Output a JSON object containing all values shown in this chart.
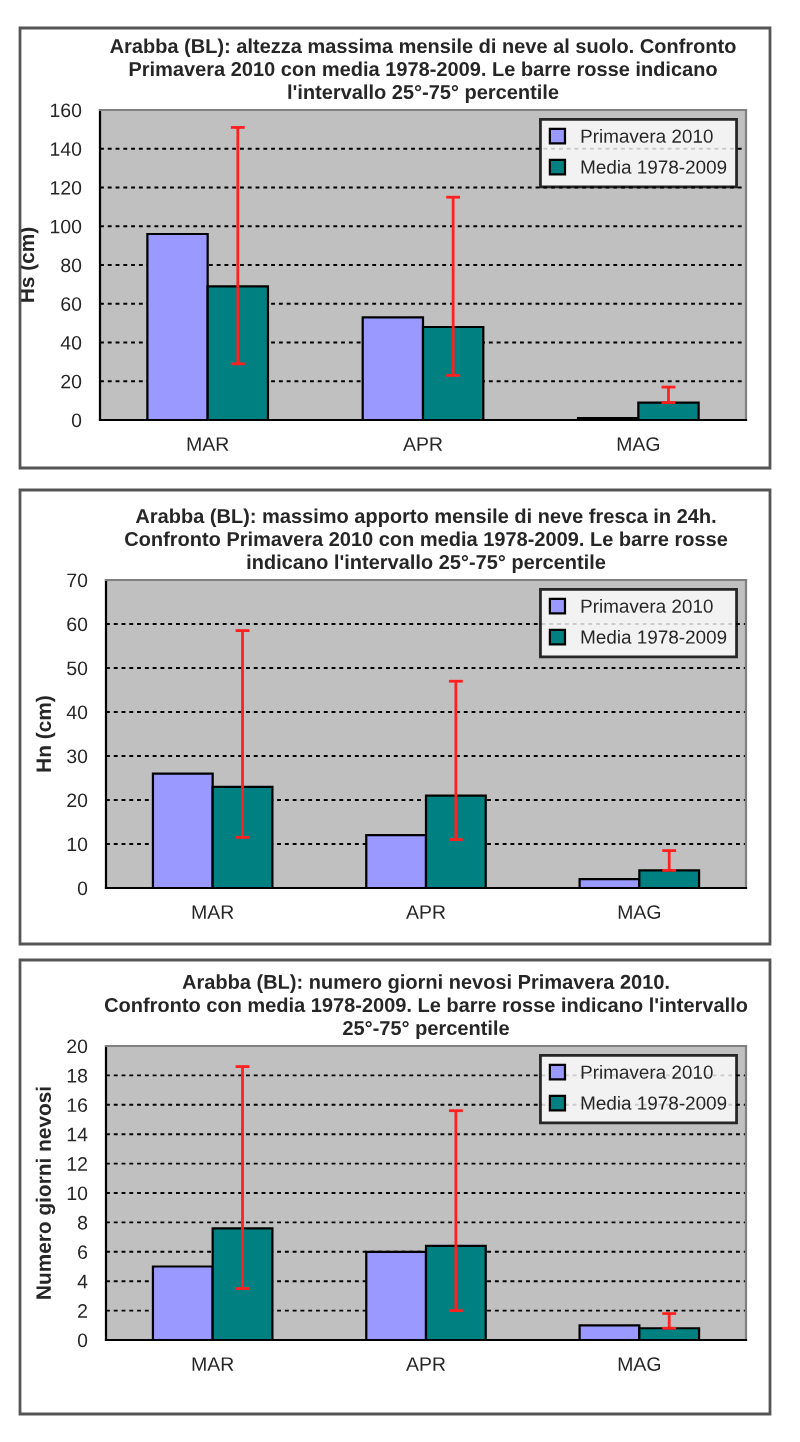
{
  "chart_data": [
    {
      "type": "bar",
      "title": "Arabba (BL): altezza massima mensile di neve al suolo. Confronto\nPrimavera 2010 con media 1978-2009. Le barre rosse indicano\nl'intervallo 25°-75° percentile",
      "ylabel": "Hs (cm)",
      "categories": [
        "MAR",
        "APR",
        "MAG"
      ],
      "series": [
        {
          "name": "Primavera 2010",
          "color": "#9999ff",
          "values": [
            96,
            53,
            1
          ]
        },
        {
          "name": "Media 1978-2009",
          "color": "#008080",
          "values": [
            69,
            48,
            9
          ],
          "errors": [
            [
              29,
              151
            ],
            [
              23,
              115
            ],
            [
              9,
              17
            ]
          ]
        }
      ],
      "ylim": [
        0,
        160
      ],
      "yticks": [
        0,
        20,
        40,
        60,
        80,
        100,
        120,
        140,
        160
      ],
      "grid": "y",
      "legend": "top right"
    },
    {
      "type": "bar",
      "title": "Arabba (BL): massimo apporto mensile di neve fresca in 24h.\nConfronto Primavera 2010 con media 1978-2009. Le barre rosse\nindicano l'intervallo 25°-75° percentile",
      "ylabel": "Hn (cm)",
      "categories": [
        "MAR",
        "APR",
        "MAG"
      ],
      "series": [
        {
          "name": "Primavera 2010",
          "color": "#9999ff",
          "values": [
            26,
            12,
            2
          ]
        },
        {
          "name": "Media 1978-2009",
          "color": "#008080",
          "values": [
            23,
            21,
            4
          ],
          "errors": [
            [
              11.5,
              58.5
            ],
            [
              11,
              47
            ],
            [
              4,
              8.5
            ]
          ]
        }
      ],
      "ylim": [
        0,
        70
      ],
      "yticks": [
        0,
        10,
        20,
        30,
        40,
        50,
        60,
        70
      ],
      "grid": "y",
      "legend": "top right"
    },
    {
      "type": "bar",
      "title": "Arabba (BL): numero giorni nevosi Primavera 2010.\nConfronto con media 1978-2009. Le barre rosse indicano l'intervallo\n25°-75° percentile",
      "ylabel": "Numero giorni nevosi",
      "categories": [
        "MAR",
        "APR",
        "MAG"
      ],
      "series": [
        {
          "name": "Primavera 2010",
          "color": "#9999ff",
          "values": [
            5,
            6,
            1
          ]
        },
        {
          "name": "Media 1978-2009",
          "color": "#008080",
          "values": [
            7.6,
            6.4,
            0.8
          ],
          "errors": [
            [
              3.5,
              18.6
            ],
            [
              2,
              15.6
            ],
            [
              0.8,
              1.8
            ]
          ]
        }
      ],
      "ylim": [
        0,
        20
      ],
      "yticks": [
        0,
        2,
        4,
        6,
        8,
        10,
        12,
        14,
        16,
        18,
        20
      ],
      "grid": "y",
      "legend": "top right"
    }
  ]
}
